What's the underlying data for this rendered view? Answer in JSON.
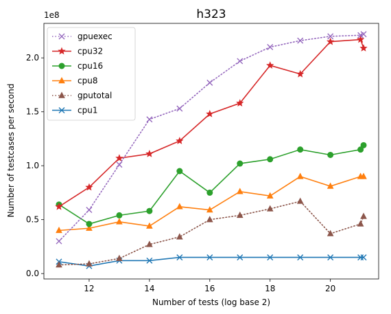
{
  "chart_data": {
    "type": "line",
    "title": "h323",
    "xlabel": "Number of tests (log base 2)",
    "ylabel": "Number of testcases per second",
    "y_offset_label": "1e8",
    "xlim": [
      10.5,
      21.6
    ],
    "ylim": [
      -0.05,
      2.32
    ],
    "xticks": [
      12,
      14,
      16,
      18,
      20
    ],
    "yticks": [
      0.0,
      0.5,
      1.0,
      1.5,
      2.0
    ],
    "ytick_labels": [
      "0.0",
      "0.5",
      "1.0",
      "1.5",
      "2.0"
    ],
    "legend_position": "upper left",
    "series": [
      {
        "name": "gpuexec",
        "color": "#9467bd",
        "dash": "dotted",
        "marker": "x",
        "x": [
          11,
          12,
          13,
          14,
          15,
          16,
          17,
          18,
          19,
          20,
          21,
          21.1
        ],
        "values": [
          0.3,
          0.59,
          1.01,
          1.43,
          1.53,
          1.77,
          1.97,
          2.1,
          2.16,
          2.2,
          2.21,
          2.22
        ]
      },
      {
        "name": "cpu32",
        "color": "#d62728",
        "dash": "solid",
        "marker": "star",
        "x": [
          11,
          12,
          13,
          14,
          15,
          16,
          17,
          18,
          19,
          20,
          21,
          21.1
        ],
        "values": [
          0.62,
          0.8,
          1.07,
          1.11,
          1.23,
          1.48,
          1.58,
          1.93,
          1.85,
          2.15,
          2.17,
          2.09
        ]
      },
      {
        "name": "cpu16",
        "color": "#2ca02c",
        "dash": "solid",
        "marker": "circle",
        "x": [
          11,
          12,
          13,
          14,
          15,
          16,
          17,
          18,
          19,
          20,
          21,
          21.1
        ],
        "values": [
          0.64,
          0.46,
          0.54,
          0.58,
          0.95,
          0.75,
          1.02,
          1.06,
          1.15,
          1.1,
          1.15,
          1.19
        ]
      },
      {
        "name": "cpu8",
        "color": "#ff7f0e",
        "dash": "solid",
        "marker": "triangle",
        "x": [
          11,
          12,
          13,
          14,
          15,
          16,
          17,
          18,
          19,
          20,
          21,
          21.1
        ],
        "values": [
          0.4,
          0.42,
          0.48,
          0.44,
          0.62,
          0.59,
          0.76,
          0.72,
          0.9,
          0.81,
          0.9,
          0.9
        ]
      },
      {
        "name": "gputotal",
        "color": "#8c564b",
        "dash": "dotted",
        "marker": "triangle",
        "x": [
          11,
          12,
          13,
          14,
          15,
          16,
          17,
          18,
          19,
          20,
          21,
          21.1
        ],
        "values": [
          0.08,
          0.09,
          0.14,
          0.27,
          0.34,
          0.5,
          0.54,
          0.6,
          0.67,
          0.37,
          0.46,
          0.53
        ]
      },
      {
        "name": "cpu1",
        "color": "#1f77b4",
        "dash": "solid",
        "marker": "x",
        "x": [
          11,
          12,
          13,
          14,
          15,
          16,
          17,
          18,
          19,
          20,
          21,
          21.1
        ],
        "values": [
          0.11,
          0.07,
          0.12,
          0.12,
          0.15,
          0.15,
          0.15,
          0.15,
          0.15,
          0.15,
          0.15,
          0.15
        ]
      }
    ]
  }
}
